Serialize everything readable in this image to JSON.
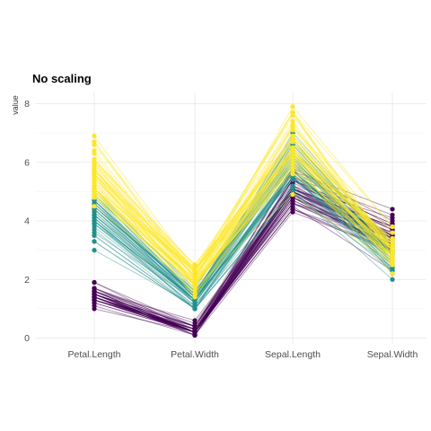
{
  "chart_data": {
    "type": "line",
    "title": "No scaling",
    "xlabel": "",
    "ylabel": "value",
    "categories": [
      "Petal.Length",
      "Petal.Width",
      "Sepal.Length",
      "Sepal.Width"
    ],
    "ylim": [
      0,
      8
    ],
    "yticks": [
      0,
      2,
      4,
      6,
      8
    ],
    "grid": true,
    "legend": "none",
    "series": [
      {
        "color": "#440154",
        "opacity": 0.45,
        "lines": [
          [
            1.4,
            0.2,
            5.1,
            3.5
          ],
          [
            1.4,
            0.2,
            4.9,
            3.0
          ],
          [
            1.3,
            0.2,
            4.7,
            3.2
          ],
          [
            1.5,
            0.2,
            4.6,
            3.1
          ],
          [
            1.4,
            0.2,
            5.0,
            3.6
          ],
          [
            1.7,
            0.4,
            5.4,
            3.9
          ],
          [
            1.4,
            0.3,
            4.6,
            3.4
          ],
          [
            1.5,
            0.2,
            5.0,
            3.4
          ],
          [
            1.4,
            0.2,
            4.4,
            2.9
          ],
          [
            1.5,
            0.1,
            4.9,
            3.1
          ],
          [
            1.5,
            0.2,
            5.4,
            3.7
          ],
          [
            1.6,
            0.2,
            4.8,
            3.4
          ],
          [
            1.4,
            0.1,
            4.8,
            3.0
          ],
          [
            1.1,
            0.1,
            4.3,
            3.0
          ],
          [
            1.2,
            0.2,
            5.8,
            4.0
          ],
          [
            1.5,
            0.4,
            5.7,
            4.4
          ],
          [
            1.3,
            0.4,
            5.4,
            3.9
          ],
          [
            1.4,
            0.3,
            5.1,
            3.5
          ],
          [
            1.7,
            0.3,
            5.7,
            3.8
          ],
          [
            1.5,
            0.3,
            5.1,
            3.8
          ],
          [
            1.7,
            0.2,
            5.4,
            3.4
          ],
          [
            1.5,
            0.4,
            5.1,
            3.7
          ],
          [
            1.0,
            0.2,
            4.6,
            3.6
          ],
          [
            1.7,
            0.5,
            5.1,
            3.3
          ],
          [
            1.9,
            0.2,
            4.8,
            3.4
          ],
          [
            1.6,
            0.2,
            5.0,
            3.0
          ],
          [
            1.6,
            0.4,
            5.0,
            3.4
          ],
          [
            1.5,
            0.2,
            5.2,
            3.5
          ],
          [
            1.4,
            0.2,
            5.2,
            3.4
          ],
          [
            1.6,
            0.2,
            4.7,
            3.2
          ],
          [
            1.6,
            0.2,
            4.8,
            3.1
          ],
          [
            1.5,
            0.4,
            5.4,
            3.4
          ],
          [
            1.5,
            0.1,
            5.2,
            4.1
          ],
          [
            1.4,
            0.2,
            5.5,
            4.2
          ],
          [
            1.5,
            0.2,
            4.9,
            3.1
          ],
          [
            1.2,
            0.2,
            5.0,
            3.2
          ],
          [
            1.3,
            0.2,
            5.5,
            3.5
          ],
          [
            1.4,
            0.1,
            4.9,
            3.6
          ],
          [
            1.3,
            0.2,
            4.4,
            3.0
          ],
          [
            1.5,
            0.2,
            5.1,
            3.4
          ],
          [
            1.3,
            0.3,
            5.0,
            3.5
          ],
          [
            1.3,
            0.3,
            4.5,
            2.3
          ],
          [
            1.3,
            0.2,
            4.4,
            3.2
          ],
          [
            1.6,
            0.6,
            5.0,
            3.5
          ],
          [
            1.9,
            0.4,
            5.1,
            3.8
          ],
          [
            1.4,
            0.3,
            4.8,
            3.0
          ],
          [
            1.6,
            0.2,
            5.1,
            3.8
          ],
          [
            1.4,
            0.2,
            4.6,
            3.2
          ],
          [
            1.5,
            0.2,
            5.3,
            3.7
          ],
          [
            1.4,
            0.2,
            5.0,
            3.3
          ]
        ]
      },
      {
        "color": "#21908C",
        "opacity": 0.45,
        "lines": [
          [
            4.7,
            1.4,
            7.0,
            3.2
          ],
          [
            4.5,
            1.5,
            6.4,
            3.2
          ],
          [
            4.9,
            1.5,
            6.9,
            3.1
          ],
          [
            4.0,
            1.3,
            5.5,
            2.3
          ],
          [
            4.6,
            1.5,
            6.5,
            2.8
          ],
          [
            4.5,
            1.3,
            5.7,
            2.8
          ],
          [
            4.7,
            1.6,
            6.3,
            3.3
          ],
          [
            3.3,
            1.0,
            4.9,
            2.4
          ],
          [
            4.6,
            1.3,
            6.6,
            2.9
          ],
          [
            3.9,
            1.4,
            5.2,
            2.7
          ],
          [
            3.5,
            1.0,
            5.0,
            2.0
          ],
          [
            4.2,
            1.5,
            5.9,
            3.0
          ],
          [
            4.0,
            1.0,
            6.0,
            2.2
          ],
          [
            4.7,
            1.4,
            6.1,
            2.9
          ],
          [
            3.6,
            1.3,
            5.6,
            2.9
          ],
          [
            4.4,
            1.4,
            6.7,
            3.1
          ],
          [
            4.5,
            1.5,
            5.6,
            3.0
          ],
          [
            4.1,
            1.0,
            5.8,
            2.7
          ],
          [
            4.5,
            1.5,
            6.2,
            2.2
          ],
          [
            3.9,
            1.1,
            5.6,
            2.5
          ],
          [
            4.8,
            1.8,
            5.9,
            3.2
          ],
          [
            4.0,
            1.3,
            6.1,
            2.8
          ],
          [
            4.9,
            1.5,
            6.3,
            2.5
          ],
          [
            4.7,
            1.2,
            6.1,
            2.8
          ],
          [
            4.3,
            1.3,
            6.4,
            2.9
          ],
          [
            4.4,
            1.4,
            6.6,
            3.0
          ],
          [
            4.8,
            1.4,
            6.8,
            2.8
          ],
          [
            5.0,
            1.7,
            6.7,
            3.0
          ],
          [
            4.5,
            1.5,
            6.0,
            2.9
          ],
          [
            3.5,
            1.0,
            5.7,
            2.6
          ],
          [
            3.8,
            1.1,
            5.5,
            2.4
          ],
          [
            3.7,
            1.0,
            5.5,
            2.4
          ],
          [
            3.9,
            1.2,
            5.8,
            2.7
          ],
          [
            5.1,
            1.6,
            6.0,
            2.7
          ],
          [
            4.5,
            1.5,
            5.4,
            3.0
          ],
          [
            4.5,
            1.6,
            6.0,
            3.4
          ],
          [
            4.7,
            1.5,
            6.7,
            3.1
          ],
          [
            4.4,
            1.3,
            6.3,
            2.3
          ],
          [
            4.1,
            1.3,
            5.6,
            3.0
          ],
          [
            4.0,
            1.3,
            5.5,
            2.5
          ],
          [
            4.4,
            1.2,
            5.5,
            2.6
          ],
          [
            4.6,
            1.4,
            6.1,
            3.0
          ],
          [
            4.0,
            1.2,
            5.8,
            2.6
          ],
          [
            3.3,
            1.0,
            5.0,
            2.3
          ],
          [
            4.2,
            1.3,
            5.6,
            2.7
          ],
          [
            4.2,
            1.2,
            5.7,
            3.0
          ],
          [
            4.2,
            1.3,
            5.7,
            2.9
          ],
          [
            4.3,
            1.3,
            6.2,
            2.9
          ],
          [
            3.0,
            1.1,
            5.1,
            2.5
          ],
          [
            4.1,
            1.3,
            5.7,
            2.8
          ]
        ]
      },
      {
        "color": "#FDE725",
        "opacity": 0.5,
        "lines": [
          [
            6.0,
            2.5,
            6.3,
            3.3
          ],
          [
            5.1,
            1.9,
            5.8,
            2.7
          ],
          [
            5.9,
            2.1,
            7.1,
            3.0
          ],
          [
            5.6,
            1.8,
            6.3,
            2.9
          ],
          [
            5.8,
            2.2,
            6.5,
            3.0
          ],
          [
            6.6,
            2.1,
            7.6,
            3.0
          ],
          [
            4.5,
            1.7,
            4.9,
            2.5
          ],
          [
            6.3,
            1.8,
            7.3,
            2.9
          ],
          [
            5.8,
            1.8,
            6.7,
            2.5
          ],
          [
            6.1,
            2.5,
            7.2,
            3.6
          ],
          [
            5.1,
            2.0,
            6.5,
            3.2
          ],
          [
            5.3,
            1.9,
            6.4,
            2.7
          ],
          [
            5.5,
            2.1,
            6.8,
            3.0
          ],
          [
            5.0,
            2.0,
            5.7,
            2.5
          ],
          [
            5.1,
            2.4,
            5.8,
            2.8
          ],
          [
            5.3,
            2.3,
            6.4,
            3.2
          ],
          [
            5.5,
            1.8,
            6.5,
            3.0
          ],
          [
            6.7,
            2.2,
            7.7,
            3.8
          ],
          [
            6.9,
            2.3,
            7.7,
            2.6
          ],
          [
            5.0,
            1.5,
            6.0,
            2.2
          ],
          [
            5.7,
            2.3,
            6.9,
            3.2
          ],
          [
            4.9,
            2.0,
            5.6,
            2.8
          ],
          [
            6.7,
            2.0,
            7.7,
            2.8
          ],
          [
            4.9,
            1.8,
            6.3,
            2.7
          ],
          [
            5.7,
            2.1,
            6.7,
            3.3
          ],
          [
            6.0,
            1.8,
            7.2,
            3.2
          ],
          [
            4.8,
            1.8,
            6.2,
            2.8
          ],
          [
            4.9,
            1.8,
            6.1,
            3.0
          ],
          [
            5.6,
            2.1,
            6.4,
            2.8
          ],
          [
            5.8,
            1.6,
            7.2,
            3.0
          ],
          [
            6.1,
            1.9,
            7.4,
            2.8
          ],
          [
            6.4,
            2.0,
            7.9,
            3.8
          ],
          [
            5.6,
            2.2,
            6.4,
            2.8
          ],
          [
            5.1,
            1.5,
            6.3,
            2.8
          ],
          [
            5.6,
            1.4,
            6.1,
            2.6
          ],
          [
            6.1,
            2.3,
            7.7,
            3.0
          ],
          [
            5.6,
            2.4,
            6.3,
            3.4
          ],
          [
            5.5,
            1.8,
            6.4,
            3.1
          ],
          [
            4.8,
            1.8,
            6.0,
            3.0
          ],
          [
            5.4,
            2.1,
            6.9,
            3.1
          ],
          [
            5.6,
            2.4,
            6.7,
            3.1
          ],
          [
            5.1,
            2.3,
            6.9,
            3.1
          ],
          [
            5.1,
            1.9,
            5.8,
            2.7
          ],
          [
            5.9,
            2.3,
            6.8,
            3.2
          ],
          [
            5.7,
            2.5,
            6.7,
            3.3
          ],
          [
            5.2,
            2.3,
            6.7,
            3.0
          ],
          [
            5.0,
            1.9,
            6.3,
            2.5
          ],
          [
            5.2,
            2.0,
            6.5,
            3.0
          ],
          [
            5.4,
            2.3,
            6.2,
            3.4
          ],
          [
            5.1,
            1.8,
            5.9,
            3.0
          ]
        ]
      }
    ]
  }
}
